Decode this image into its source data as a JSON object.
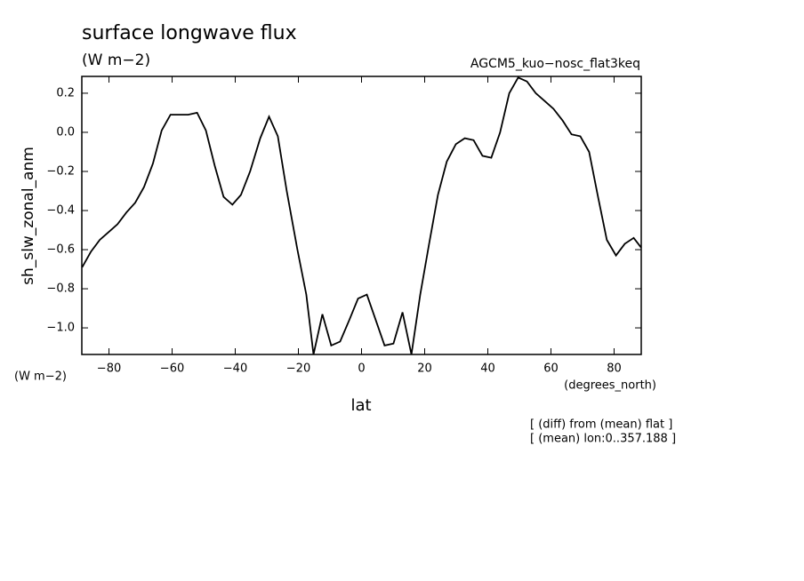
{
  "chart_data": {
    "type": "line",
    "title": "surface longwave flux",
    "subtitle": "(W m−2)",
    "run_label": "AGCM5_kuo−nosc_flat3keq",
    "y_label": "sh_slw_zonal_anm",
    "y_units": "(W m−2)",
    "x_label": "lat",
    "x_units": "(degrees_north)",
    "notes": [
      "[ (diff) from (mean) flat ]",
      "[ (mean) lon:0..357.188 ]"
    ],
    "xlim": [
      -88.6,
      88.6
    ],
    "ylim": [
      -1.136,
      0.286
    ],
    "xticks": [
      {
        "value": -80,
        "label": "−80"
      },
      {
        "value": -60,
        "label": "−60"
      },
      {
        "value": -40,
        "label": "−40"
      },
      {
        "value": -20,
        "label": "−20"
      },
      0,
      20,
      40,
      60,
      80
    ],
    "yticks": [
      {
        "value": -1,
        "label": "−1.0"
      },
      {
        "value": -0.8,
        "label": "−0.8"
      },
      {
        "value": -0.6,
        "label": "−0.6"
      },
      {
        "value": -0.4,
        "label": "−0.4"
      },
      {
        "value": -0.2,
        "label": "−0.2"
      },
      {
        "value": 0,
        "label": "0.0"
      },
      0.2
    ],
    "x": [
      -88.5,
      -85.7,
      -82.9,
      -80.1,
      -77.3,
      -74.5,
      -71.7,
      -68.9,
      -66.1,
      -63.3,
      -60.5,
      -57.7,
      -54.9,
      -52.1,
      -49.3,
      -46.5,
      -43.7,
      -40.9,
      -38.2,
      -35.3,
      -32.1,
      -29.3,
      -26.5,
      -23.7,
      -20.3,
      -17.5,
      -15.2,
      -12.4,
      -9.6,
      -6.8,
      -3.9,
      -1.1,
      1.7,
      4.5,
      7.3,
      10.1,
      13.0,
      15.8,
      18.6,
      21.4,
      24.2,
      27.0,
      29.9,
      32.7,
      35.5,
      38.3,
      41.1,
      43.9,
      46.8,
      49.6,
      52.4,
      55.2,
      58.0,
      60.8,
      63.7,
      66.5,
      69.3,
      72.1,
      74.9,
      77.7,
      80.6,
      83.4,
      86.2,
      88.6
    ],
    "series": [
      {
        "color": "#000000",
        "values": [
          -0.69,
          -0.61,
          -0.55,
          -0.51,
          -0.47,
          -0.41,
          -0.36,
          -0.28,
          -0.16,
          0.01,
          0.09,
          0.09,
          0.09,
          0.1,
          0.01,
          -0.17,
          -0.33,
          -0.37,
          -0.32,
          -0.2,
          -0.03,
          0.08,
          -0.02,
          -0.3,
          -0.6,
          -0.83,
          -1.136,
          -0.93,
          -1.09,
          -1.07,
          -0.96,
          -0.85,
          -0.83,
          -0.96,
          -1.09,
          -1.08,
          -0.92,
          -1.136,
          -0.83,
          -0.57,
          -0.32,
          -0.15,
          -0.06,
          -0.03,
          -0.04,
          -0.12,
          -0.13,
          0.0,
          0.2,
          0.28,
          0.26,
          0.2,
          0.16,
          0.12,
          0.06,
          -0.01,
          -0.02,
          -0.1,
          -0.33,
          -0.55,
          -0.63,
          -0.57,
          -0.54,
          -0.59
        ]
      }
    ]
  }
}
